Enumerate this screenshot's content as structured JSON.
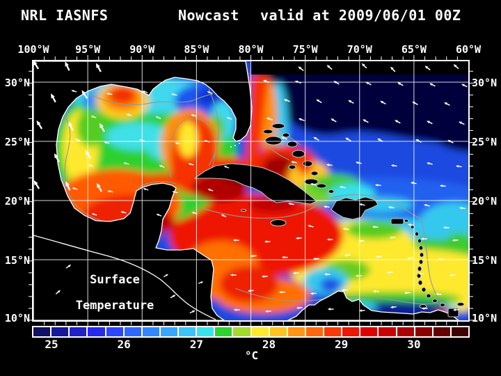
{
  "title": {
    "model": "NRL IASNFS",
    "product": "Nowcast",
    "valid": "valid at 2009/06/01 00Z"
  },
  "map": {
    "lon_labels": [
      "100°W",
      "95°W",
      "90°W",
      "85°W",
      "80°W",
      "75°W",
      "70°W",
      "65°W",
      "60°W"
    ],
    "lat_labels": [
      "30°N",
      "25°N",
      "20°N",
      "15°N",
      "10°N"
    ],
    "annotation": {
      "line1": "Surface",
      "line2": "Temperature"
    }
  },
  "colorbar": {
    "tick_labels": [
      "25",
      "26",
      "27",
      "28",
      "29",
      "30"
    ],
    "unit": "°C",
    "swatches": [
      "#101065",
      "#18189a",
      "#2121c8",
      "#2828ee",
      "#2a46ff",
      "#2f68ff",
      "#3386ff",
      "#38a6ff",
      "#3cc3fa",
      "#38e4ec",
      "#2ed32e",
      "#a4da2b",
      "#ffe92e",
      "#ffc221",
      "#ff9415",
      "#ff660d",
      "#fa3908",
      "#f01505",
      "#e00000",
      "#c90000",
      "#ad0000",
      "#8d0000",
      "#660000",
      "#3f0000"
    ]
  },
  "colors": {
    "background": "#000000",
    "frame": "#ffffff",
    "grid": "#ffffff",
    "coastline": "#ffffff",
    "island_outline": "#c0c0c0",
    "contour": "#969696",
    "land": "#000000",
    "text": "#ffffff"
  }
}
